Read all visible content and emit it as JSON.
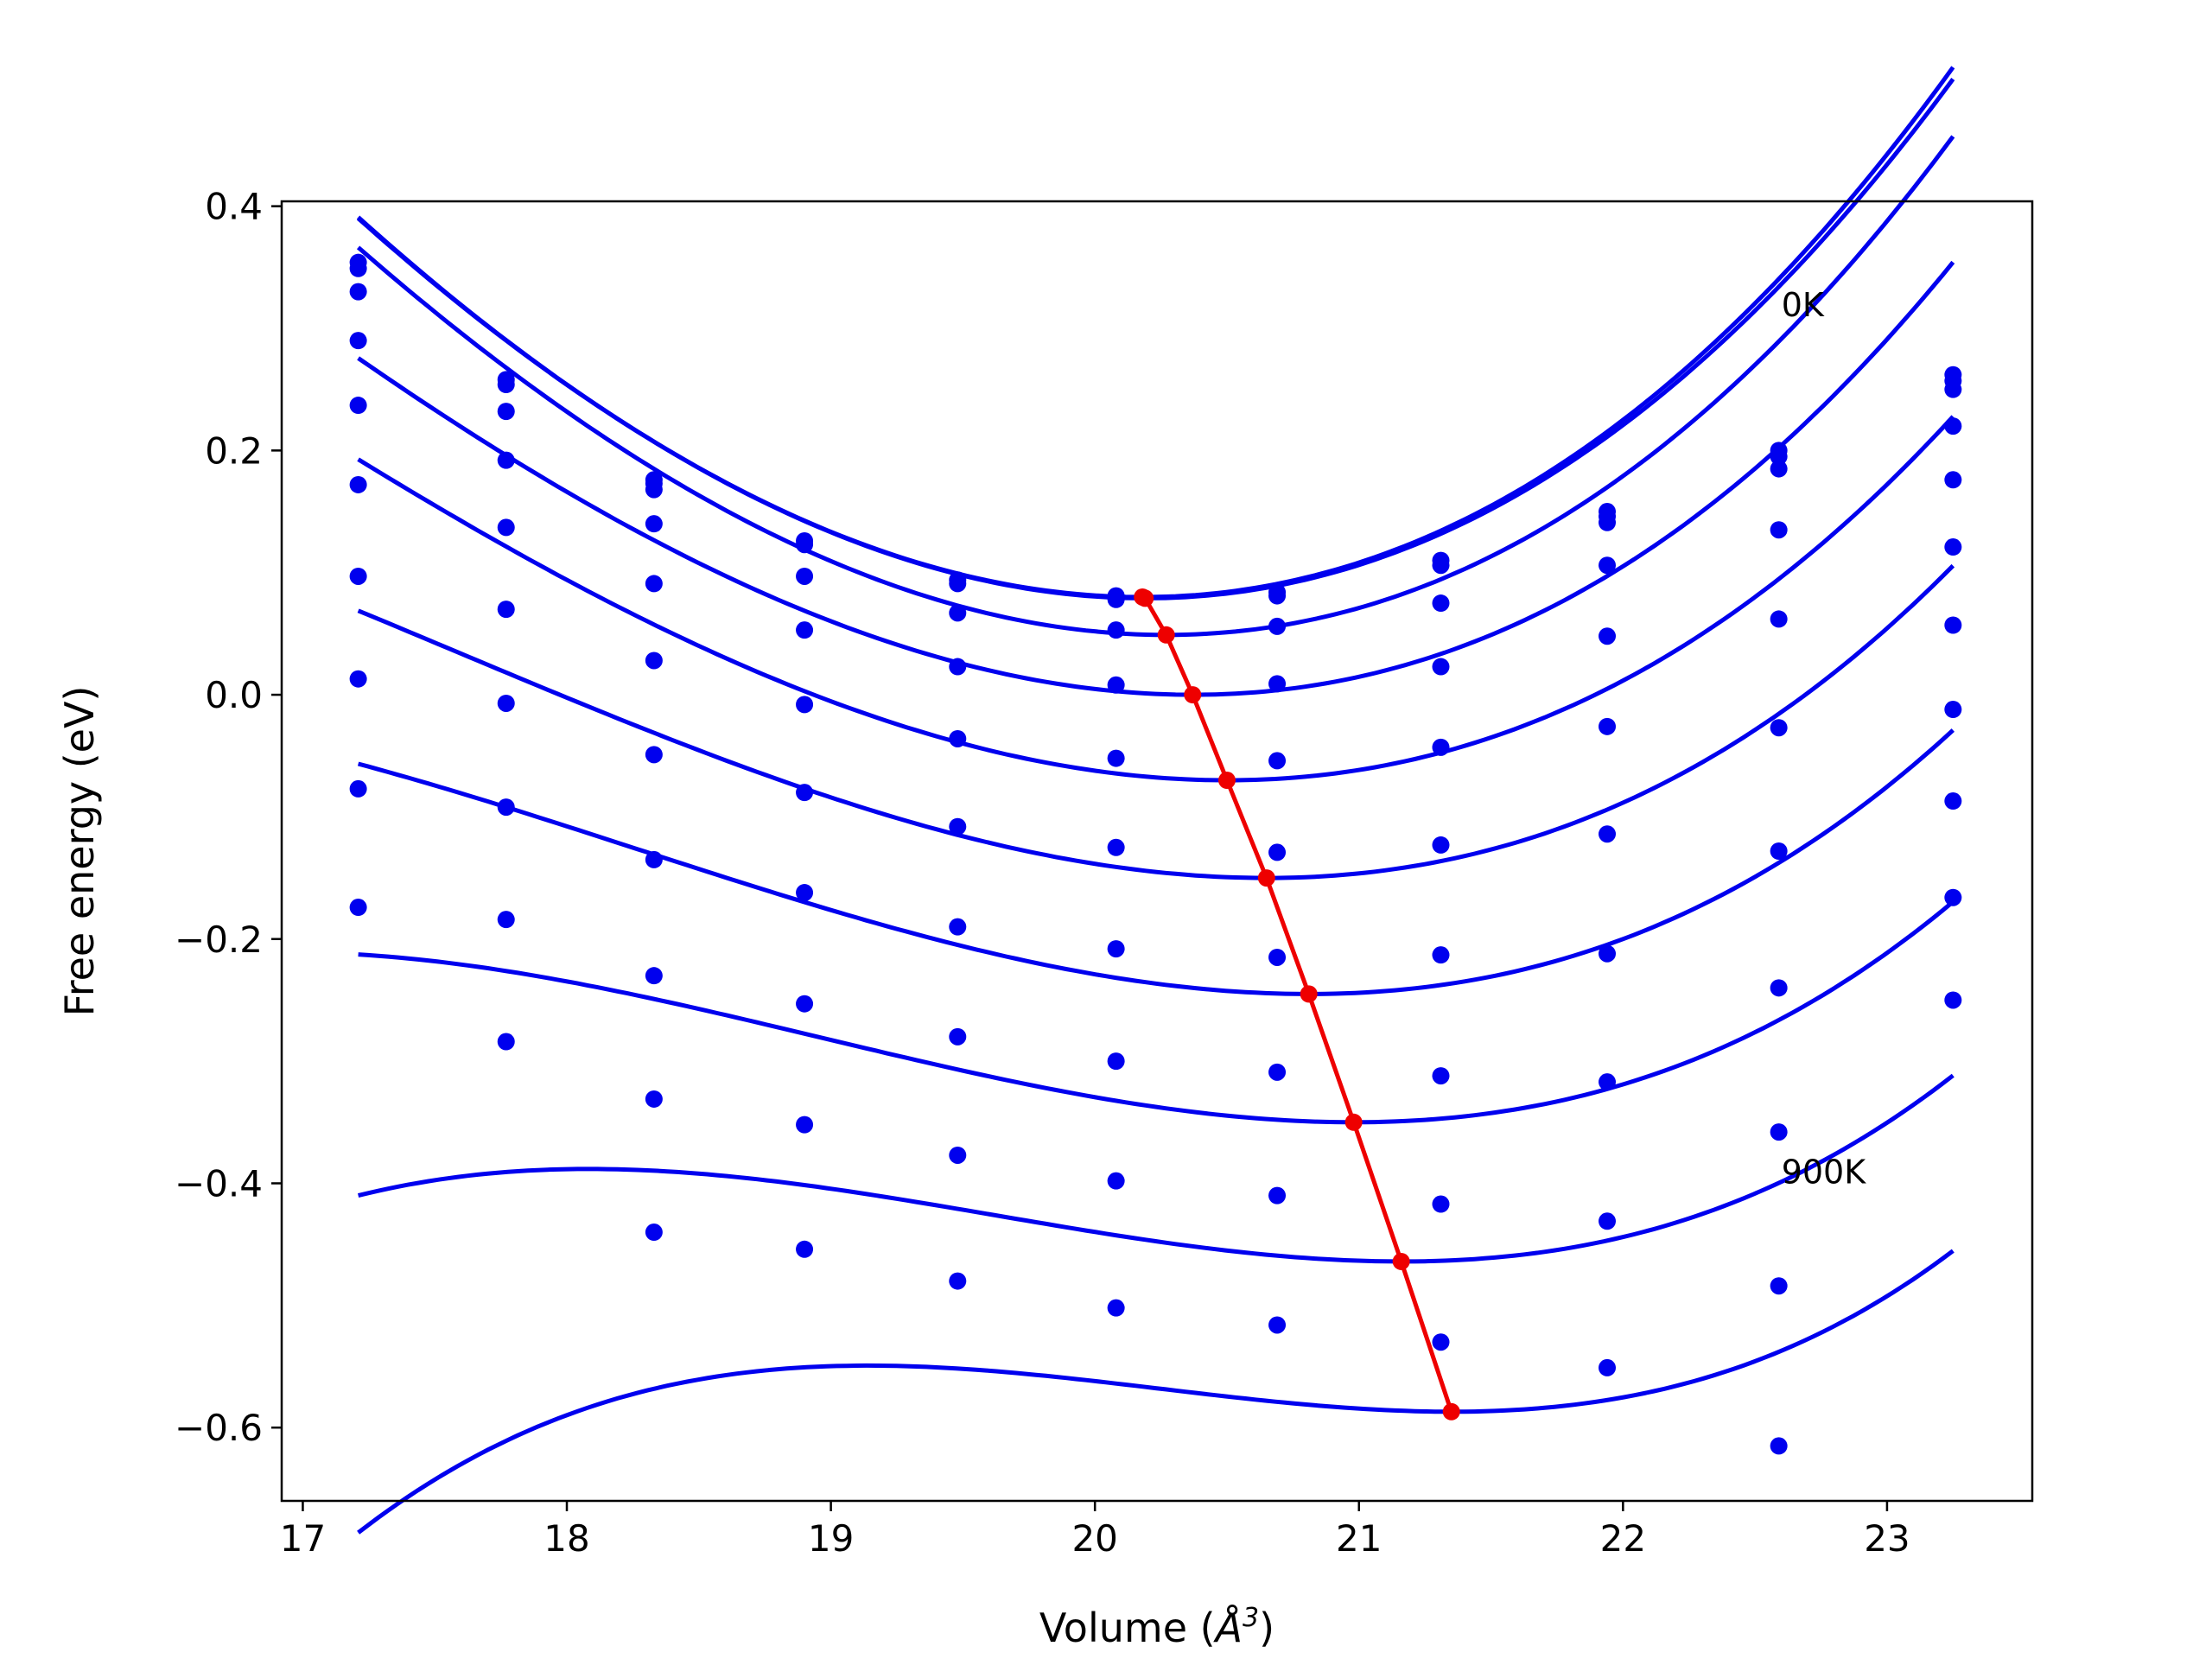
{
  "chart_data": {
    "type": "line",
    "xlabel_main": "Volume (",
    "xlabel_unit": "Å",
    "xlabel_sup": "3",
    "xlabel_close": ")",
    "ylabel": "Free energy (eV)",
    "xlim": [
      16.92,
      23.55
    ],
    "ylim": [
      -0.66,
      0.404
    ],
    "xticks": [
      17,
      18,
      19,
      20,
      21,
      22,
      23
    ],
    "yticks": [
      0.4,
      0.2,
      0.0,
      -0.2,
      -0.4,
      -0.6
    ],
    "ytick_labels": [
      "0.4",
      "0.2",
      "0.0",
      "−0.2",
      "−0.4",
      "−0.6"
    ],
    "annotations": [
      {
        "text": "0K",
        "x": 22.6,
        "y": 0.31
      },
      {
        "text": "900K",
        "x": 22.6,
        "y": -0.4
      }
    ],
    "colors": {
      "curves": "#0000ee",
      "minima": "#ee0000"
    },
    "volumes": [
      17.21,
      17.77,
      18.33,
      18.9,
      19.48,
      20.08,
      20.69,
      21.31,
      21.94,
      22.59,
      23.25
    ],
    "fit_range": [
      17.21,
      23.25
    ],
    "series": [
      {
        "min": [
          20.18,
          0.08
        ],
        "c": [
          0.0405,
          0.0018
        ],
        "points": [
          0.354,
          0.258,
          0.176,
          0.126,
          0.094,
          0.081,
          0.084,
          0.11,
          0.15,
          0.2,
          0.262
        ]
      },
      {
        "min": [
          20.19,
          0.079
        ],
        "c": [
          0.0402,
          0.0017
        ],
        "points": [
          0.349,
          0.254,
          0.173,
          0.123,
          0.091,
          0.078,
          0.081,
          0.106,
          0.146,
          0.195,
          0.257
        ]
      },
      {
        "min": [
          20.27,
          0.049
        ],
        "c": [
          0.04,
          0.002
        ],
        "points": [
          0.33,
          0.232,
          0.168,
          0.097,
          0.067,
          0.053,
          0.056,
          0.075,
          0.141,
          0.185,
          0.25
        ]
      },
      {
        "min": [
          20.37,
          0.0
        ],
        "c": [
          0.0355,
          0.0025
        ],
        "points": [
          0.29,
          0.192,
          0.14,
          0.053,
          0.023,
          0.008,
          0.009,
          0.023,
          0.106,
          0.135,
          0.22
        ]
      },
      {
        "min": [
          20.5,
          -0.07
        ],
        "c": [
          0.0325,
          0.0025
        ],
        "points": [
          0.237,
          0.137,
          0.091,
          -0.008,
          -0.036,
          -0.052,
          -0.054,
          -0.043,
          0.048,
          0.062,
          0.176
        ]
      },
      {
        "min": [
          20.65,
          -0.15
        ],
        "c": [
          0.0295,
          0.0032
        ],
        "points": [
          0.172,
          0.07,
          0.028,
          -0.08,
          -0.108,
          -0.125,
          -0.129,
          -0.123,
          -0.026,
          -0.027,
          0.121
        ]
      },
      {
        "min": [
          20.81,
          -0.245
        ],
        "c": [
          0.0275,
          0.0036
        ],
        "points": [
          0.097,
          -0.007,
          -0.049,
          -0.162,
          -0.19,
          -0.208,
          -0.215,
          -0.213,
          -0.114,
          -0.128,
          0.057
        ]
      },
      {
        "min": [
          20.98,
          -0.35
        ],
        "c": [
          0.0255,
          0.0042
        ],
        "points": [
          0.013,
          -0.092,
          -0.135,
          -0.253,
          -0.28,
          -0.3,
          -0.309,
          -0.312,
          -0.212,
          -0.24,
          -0.012
        ]
      },
      {
        "min": [
          21.16,
          -0.464
        ],
        "c": [
          0.024,
          0.0052
        ],
        "points": [
          -0.077,
          -0.184,
          -0.23,
          -0.352,
          -0.377,
          -0.398,
          -0.41,
          -0.417,
          -0.317,
          -0.358,
          -0.087
        ]
      },
      {
        "min": [
          21.35,
          -0.587
        ],
        "c": [
          0.0232,
          0.007
        ],
        "points": [
          -0.174,
          -0.284,
          -0.331,
          -0.454,
          -0.48,
          -0.502,
          -0.516,
          -0.53,
          -0.431,
          -0.484,
          -0.166
        ]
      },
      {
        "min": null,
        "c": null,
        "points": [
          null,
          null,
          -0.44,
          null,
          null,
          null,
          null,
          null,
          -0.551,
          -0.615,
          -0.25
        ]
      }
    ]
  }
}
